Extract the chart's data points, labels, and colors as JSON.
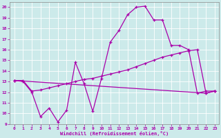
{
  "xlabel": "Windchill (Refroidissement éolien,°C)",
  "bg_color": "#cceaea",
  "line_color": "#aa00aa",
  "xlim": [
    -0.5,
    23.5
  ],
  "ylim": [
    9,
    20.5
  ],
  "xticks": [
    0,
    1,
    2,
    3,
    4,
    5,
    6,
    7,
    8,
    9,
    10,
    11,
    12,
    13,
    14,
    15,
    16,
    17,
    18,
    19,
    20,
    21,
    22,
    23
  ],
  "yticks": [
    9,
    10,
    11,
    12,
    13,
    14,
    15,
    16,
    17,
    18,
    19,
    20
  ],
  "line1_x": [
    0,
    1,
    2,
    3,
    4,
    5,
    6,
    7,
    8,
    9,
    10,
    11,
    12,
    13,
    14,
    15,
    16,
    17,
    18,
    19,
    20,
    21,
    22,
    23
  ],
  "line1_y": [
    13.1,
    13.0,
    12.0,
    9.7,
    10.5,
    9.2,
    10.3,
    14.8,
    12.8,
    10.2,
    13.3,
    16.7,
    17.8,
    19.3,
    20.0,
    20.1,
    18.8,
    18.8,
    16.4,
    16.4,
    16.0,
    11.9,
    12.1,
    12.1
  ],
  "line2_x": [
    0,
    1,
    2,
    3,
    4,
    5,
    6,
    7,
    8,
    9,
    10,
    11,
    12,
    13,
    14,
    15,
    16,
    17,
    18,
    19,
    20,
    21,
    22,
    23
  ],
  "line2_y": [
    13.1,
    13.1,
    12.1,
    12.2,
    12.4,
    12.6,
    12.8,
    13.0,
    13.2,
    13.3,
    13.5,
    13.7,
    13.9,
    14.1,
    14.4,
    14.7,
    15.0,
    15.3,
    15.5,
    15.7,
    15.9,
    16.0,
    11.9,
    12.1
  ],
  "line3_x": [
    0,
    22,
    23
  ],
  "line3_y": [
    13.1,
    11.9,
    12.1
  ]
}
